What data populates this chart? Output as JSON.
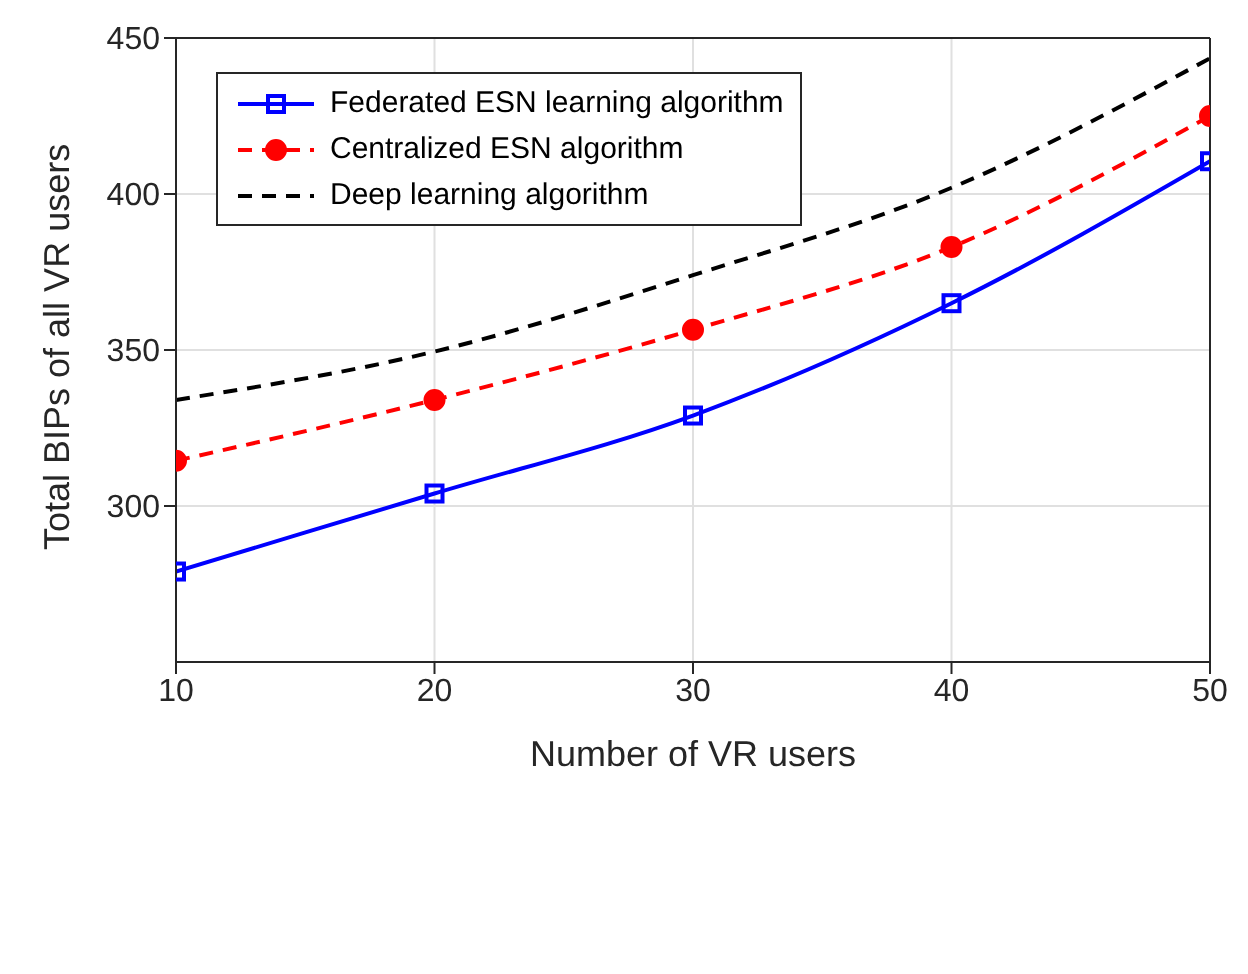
{
  "chart_data": {
    "type": "line",
    "xlabel": "Number of VR users",
    "ylabel": "Total BIPs of all VR users",
    "x": [
      10,
      20,
      30,
      40,
      50
    ],
    "series": [
      {
        "name": "Federated ESN learning algorithm",
        "color": "#0000ff",
        "values": [
          279,
          304,
          329,
          365,
          410.5
        ],
        "marker": "square",
        "line_style": "solid"
      },
      {
        "name": "Centralized ESN algorithm",
        "color": "#ff0000",
        "values": [
          314.5,
          334,
          356.5,
          383,
          425
        ],
        "marker": "circle",
        "line_style": "dashed"
      },
      {
        "name": "Deep learning algorithm",
        "color": "#000000",
        "values": [
          334,
          349.5,
          374,
          402,
          443.5
        ],
        "marker": "none",
        "line_style": "dashed"
      }
    ],
    "xlim": [
      10,
      50
    ],
    "xticks": [
      10,
      20,
      30,
      40,
      50
    ],
    "ylim": [
      250,
      450
    ],
    "yticks": [
      300,
      350,
      400,
      450
    ],
    "grid": true,
    "legend": "top left"
  }
}
